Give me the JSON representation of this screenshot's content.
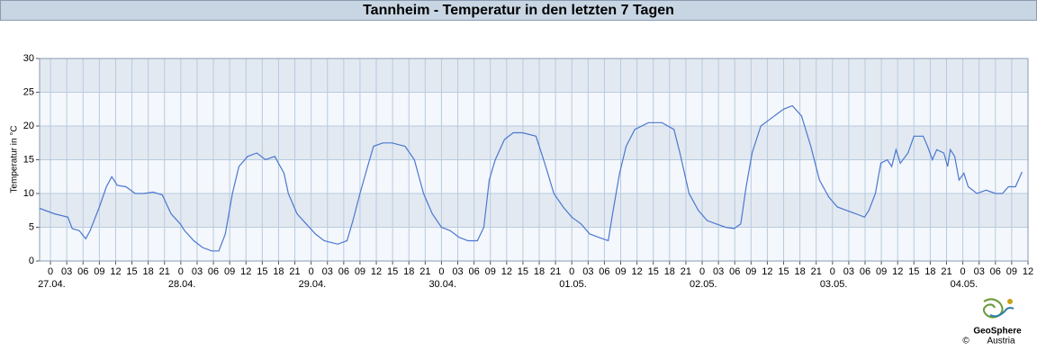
{
  "chart_data": {
    "type": "line",
    "title": "Tannheim - Temperatur in den letzten 7 Tagen",
    "ylabel": "Temperatur in °C",
    "xlim": [
      -2,
      180
    ],
    "ylim": [
      0,
      30
    ],
    "yticks": [
      0,
      5,
      10,
      15,
      20,
      25,
      30
    ],
    "grid": true,
    "xticks": [
      0,
      {
        "value": 3,
        "label": "03"
      },
      {
        "value": 6,
        "label": "06"
      },
      {
        "value": 9,
        "label": "09"
      },
      12,
      15,
      18,
      21,
      {
        "value": 24,
        "label": "0"
      },
      {
        "value": 27,
        "label": "03"
      },
      {
        "value": 30,
        "label": "06"
      },
      {
        "value": 33,
        "label": "09"
      },
      {
        "value": 36,
        "label": "12"
      },
      {
        "value": 39,
        "label": "15"
      },
      {
        "value": 42,
        "label": "18"
      },
      {
        "value": 45,
        "label": "21"
      },
      {
        "value": 48,
        "label": "0"
      },
      {
        "value": 51,
        "label": "03"
      },
      {
        "value": 54,
        "label": "06"
      },
      {
        "value": 57,
        "label": "09"
      },
      {
        "value": 60,
        "label": "12"
      },
      {
        "value": 63,
        "label": "15"
      },
      {
        "value": 66,
        "label": "18"
      },
      {
        "value": 69,
        "label": "21"
      },
      {
        "value": 72,
        "label": "0"
      },
      {
        "value": 75,
        "label": "03"
      },
      {
        "value": 78,
        "label": "06"
      },
      {
        "value": 81,
        "label": "09"
      },
      {
        "value": 84,
        "label": "12"
      },
      {
        "value": 87,
        "label": "15"
      },
      {
        "value": 90,
        "label": "18"
      },
      {
        "value": 93,
        "label": "21"
      },
      {
        "value": 96,
        "label": "0"
      },
      {
        "value": 99,
        "label": "03"
      },
      {
        "value": 102,
        "label": "06"
      },
      {
        "value": 105,
        "label": "09"
      },
      {
        "value": 108,
        "label": "12"
      },
      {
        "value": 111,
        "label": "15"
      },
      {
        "value": 114,
        "label": "18"
      },
      {
        "value": 117,
        "label": "21"
      },
      {
        "value": 120,
        "label": "0"
      },
      {
        "value": 123,
        "label": "03"
      },
      {
        "value": 126,
        "label": "06"
      },
      {
        "value": 129,
        "label": "09"
      },
      {
        "value": 132,
        "label": "12"
      },
      {
        "value": 135,
        "label": "15"
      },
      {
        "value": 138,
        "label": "18"
      },
      {
        "value": 141,
        "label": "21"
      },
      {
        "value": 144,
        "label": "0"
      },
      {
        "value": 147,
        "label": "03"
      },
      {
        "value": 150,
        "label": "06"
      },
      {
        "value": 153,
        "label": "09"
      },
      {
        "value": 156,
        "label": "12"
      },
      {
        "value": 159,
        "label": "15"
      },
      {
        "value": 162,
        "label": "18"
      },
      {
        "value": 165,
        "label": "21"
      },
      {
        "value": 168,
        "label": "0"
      },
      {
        "value": 171,
        "label": "03"
      },
      {
        "value": 174,
        "label": "06"
      },
      {
        "value": 177,
        "label": "09"
      },
      {
        "value": 180,
        "label": "12"
      }
    ],
    "x_day_labels": [
      {
        "value": 0,
        "label": "27.04."
      },
      {
        "value": 24,
        "label": "28.04."
      },
      {
        "value": 48,
        "label": "29.04."
      },
      {
        "value": 72,
        "label": "30.04."
      },
      {
        "value": 96,
        "label": "01.05."
      },
      {
        "value": 120,
        "label": "02.05."
      },
      {
        "value": 144,
        "label": "03.05."
      },
      {
        "value": 168,
        "label": "04.05."
      }
    ],
    "x": [
      -2.0,
      0.7,
      3.2,
      4.0,
      5.3,
      6.5,
      7.3,
      9.0,
      10.3,
      11.3,
      12.3,
      13.9,
      15.6,
      17.2,
      18.9,
      20.6,
      22.2,
      23.9,
      24.7,
      26.4,
      28.0,
      29.7,
      31.0,
      32.2,
      33.5,
      34.7,
      36.3,
      38.0,
      39.6,
      41.3,
      43.0,
      43.8,
      45.4,
      47.1,
      48.8,
      50.4,
      52.9,
      54.6,
      55.7,
      57.0,
      58.4,
      59.5,
      61.2,
      62.9,
      65.3,
      67.0,
      68.7,
      70.3,
      72.0,
      73.6,
      75.3,
      76.9,
      78.6,
      79.8,
      80.8,
      81.9,
      83.6,
      85.2,
      86.9,
      89.4,
      91.0,
      92.7,
      94.4,
      96.0,
      97.7,
      99.3,
      101.0,
      102.7,
      103.5,
      104.8,
      106.0,
      107.6,
      110.1,
      112.6,
      114.8,
      115.9,
      117.6,
      119.3,
      120.9,
      122.6,
      124.3,
      125.9,
      127.1,
      128.1,
      129.2,
      130.8,
      133.3,
      135.0,
      136.6,
      138.3,
      140.0,
      141.6,
      143.3,
      144.9,
      146.6,
      148.3,
      149.9,
      150.7,
      151.9,
      152.9,
      154.1,
      154.9,
      155.7,
      156.5,
      157.9,
      159.0,
      160.7,
      161.5,
      162.4,
      163.2,
      164.5,
      165.2,
      165.7,
      166.5,
      167.3,
      168.2,
      169.0,
      170.6,
      172.3,
      174.0,
      175.3,
      176.4,
      177.7,
      178.9
    ],
    "series": [
      {
        "color": "#4a78d0",
        "values": [
          7.8,
          7.0,
          6.5,
          4.8,
          4.5,
          3.3,
          4.5,
          8,
          11,
          12.5,
          11.2,
          11,
          10,
          10,
          10.2,
          9.8,
          7,
          5.5,
          4.5,
          3,
          2,
          1.5,
          1.5,
          4,
          10,
          14,
          15.5,
          16,
          15,
          15.5,
          13,
          10,
          7,
          5.5,
          4,
          3,
          2.5,
          3,
          6,
          10,
          14,
          17,
          17.5,
          17.5,
          17,
          15,
          10,
          7,
          5,
          4.5,
          3.5,
          3,
          3,
          5,
          12,
          15,
          18,
          19,
          19,
          18.5,
          14.5,
          10,
          8,
          6.5,
          5.5,
          4,
          3.5,
          3,
          7,
          13,
          17,
          19.5,
          20.5,
          20.5,
          19.5,
          16,
          10,
          7.5,
          6,
          5.5,
          5,
          4.8,
          5.5,
          11,
          16,
          20,
          21.5,
          22.5,
          23,
          21.5,
          17,
          12,
          9.5,
          8,
          7.5,
          7,
          6.5,
          7.5,
          10,
          14.5,
          15,
          14,
          16.5,
          14.5,
          16,
          18.5,
          18.5,
          17,
          15,
          16.5,
          16,
          14,
          16.5,
          15.5,
          12,
          13,
          11,
          10,
          10.5,
          10,
          10,
          11,
          11,
          13.2
        ]
      }
    ]
  },
  "logo": {
    "name": "GeoSphere",
    "sub": "Austria",
    "copyright": "©"
  }
}
